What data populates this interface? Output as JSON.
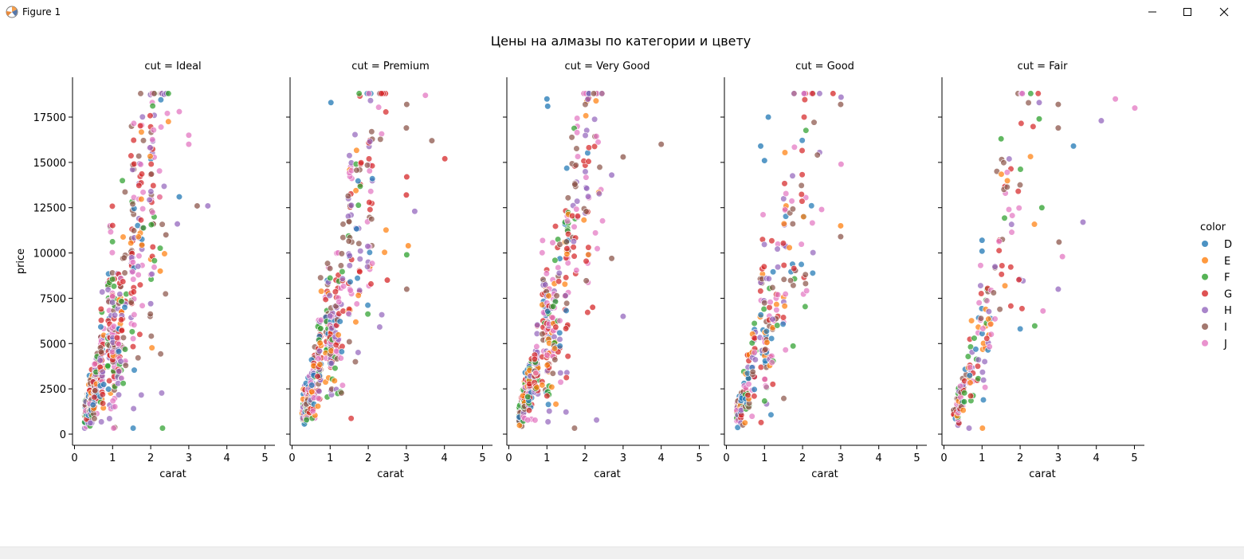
{
  "window": {
    "title": "Figure 1"
  },
  "chart_data": {
    "type": "scatter",
    "title": "Цены на алмазы по категории и цвету",
    "xlabel": "carat",
    "ylabel": "price",
    "xlim": [
      0,
      5.2
    ],
    "ylim": [
      0,
      19500
    ],
    "xticks": [
      0,
      1,
      2,
      3,
      4,
      5
    ],
    "yticks": [
      0,
      2500,
      5000,
      7500,
      10000,
      12500,
      15000,
      17500
    ],
    "facet_label_prefix": "cut = ",
    "facets": [
      "Ideal",
      "Premium",
      "Very Good",
      "Good",
      "Fair"
    ],
    "legend": {
      "title": "color",
      "placement": "right",
      "entries": [
        {
          "name": "D",
          "color": "#1f77b4"
        },
        {
          "name": "E",
          "color": "#ff7f0e"
        },
        {
          "name": "F",
          "color": "#2ca02c"
        },
        {
          "name": "G",
          "color": "#d62728"
        },
        {
          "name": "H",
          "color": "#9467bd"
        },
        {
          "name": "I",
          "color": "#8c564b"
        },
        {
          "name": "J",
          "color": "#e377c2"
        }
      ]
    },
    "panels": [
      {
        "facet": "Ideal",
        "outliers": [
          {
            "color": "J",
            "x": 2.75,
            "y": 17800
          },
          {
            "color": "J",
            "x": 3.0,
            "y": 16500
          },
          {
            "color": "J",
            "x": 3.0,
            "y": 16000
          },
          {
            "color": "D",
            "x": 2.75,
            "y": 13100
          },
          {
            "color": "I",
            "x": 3.22,
            "y": 12600
          },
          {
            "color": "H",
            "x": 3.5,
            "y": 12600
          },
          {
            "color": "H",
            "x": 2.7,
            "y": 11600
          },
          {
            "color": "I",
            "x": 2.4,
            "y": 11000
          },
          {
            "color": "E",
            "x": 2.25,
            "y": 9000
          },
          {
            "color": "H",
            "x": 2.0,
            "y": 7200
          }
        ]
      },
      {
        "facet": "Premium",
        "outliers": [
          {
            "color": "J",
            "x": 3.5,
            "y": 18700
          },
          {
            "color": "I",
            "x": 3.01,
            "y": 18200
          },
          {
            "color": "I",
            "x": 3.67,
            "y": 16200
          },
          {
            "color": "G",
            "x": 4.01,
            "y": 15200
          },
          {
            "color": "I",
            "x": 3.0,
            "y": 16900
          },
          {
            "color": "D",
            "x": 1.02,
            "y": 18300
          },
          {
            "color": "G",
            "x": 3.01,
            "y": 14200
          },
          {
            "color": "G",
            "x": 3.0,
            "y": 13200
          },
          {
            "color": "H",
            "x": 3.22,
            "y": 12300
          },
          {
            "color": "E",
            "x": 3.05,
            "y": 10400
          },
          {
            "color": "F",
            "x": 3.01,
            "y": 9900
          },
          {
            "color": "I",
            "x": 3.01,
            "y": 8000
          },
          {
            "color": "G",
            "x": 2.5,
            "y": 8500
          }
        ]
      },
      {
        "facet": "Very Good",
        "outliers": [
          {
            "color": "I",
            "x": 4.0,
            "y": 16000
          },
          {
            "color": "I",
            "x": 3.0,
            "y": 15300
          },
          {
            "color": "H",
            "x": 3.0,
            "y": 6500
          },
          {
            "color": "D",
            "x": 1.0,
            "y": 18500
          },
          {
            "color": "D",
            "x": 1.02,
            "y": 18100
          },
          {
            "color": "H",
            "x": 2.7,
            "y": 14300
          },
          {
            "color": "I",
            "x": 2.7,
            "y": 9700
          },
          {
            "color": "G",
            "x": 2.2,
            "y": 7000
          }
        ]
      },
      {
        "facet": "Good",
        "outliers": [
          {
            "color": "I",
            "x": 3.0,
            "y": 18200
          },
          {
            "color": "H",
            "x": 3.01,
            "y": 18600
          },
          {
            "color": "G",
            "x": 2.8,
            "y": 18800
          },
          {
            "color": "J",
            "x": 3.01,
            "y": 14900
          },
          {
            "color": "I",
            "x": 3.0,
            "y": 10900
          },
          {
            "color": "E",
            "x": 3.0,
            "y": 11500
          },
          {
            "color": "D",
            "x": 1.1,
            "y": 17500
          },
          {
            "color": "D",
            "x": 0.9,
            "y": 15900
          },
          {
            "color": "D",
            "x": 1.0,
            "y": 15100
          },
          {
            "color": "J",
            "x": 2.5,
            "y": 12400
          }
        ]
      },
      {
        "facet": "Fair",
        "outliers": [
          {
            "color": "J",
            "x": 5.01,
            "y": 18000
          },
          {
            "color": "J",
            "x": 4.5,
            "y": 18500
          },
          {
            "color": "H",
            "x": 4.13,
            "y": 17300
          },
          {
            "color": "D",
            "x": 3.4,
            "y": 15900
          },
          {
            "color": "H",
            "x": 3.65,
            "y": 11700
          },
          {
            "color": "I",
            "x": 3.0,
            "y": 18200
          },
          {
            "color": "I",
            "x": 3.0,
            "y": 16900
          },
          {
            "color": "H",
            "x": 2.5,
            "y": 18300
          },
          {
            "color": "F",
            "x": 2.5,
            "y": 17400
          },
          {
            "color": "J",
            "x": 3.11,
            "y": 9800
          },
          {
            "color": "I",
            "x": 3.02,
            "y": 10600
          },
          {
            "color": "H",
            "x": 3.0,
            "y": 8000
          },
          {
            "color": "J",
            "x": 2.6,
            "y": 6800
          },
          {
            "color": "F",
            "x": 2.57,
            "y": 12500
          },
          {
            "color": "D",
            "x": 1.0,
            "y": 10700
          },
          {
            "color": "D",
            "x": 1.0,
            "y": 10100
          },
          {
            "color": "F",
            "x": 1.5,
            "y": 16300
          }
        ]
      }
    ]
  }
}
